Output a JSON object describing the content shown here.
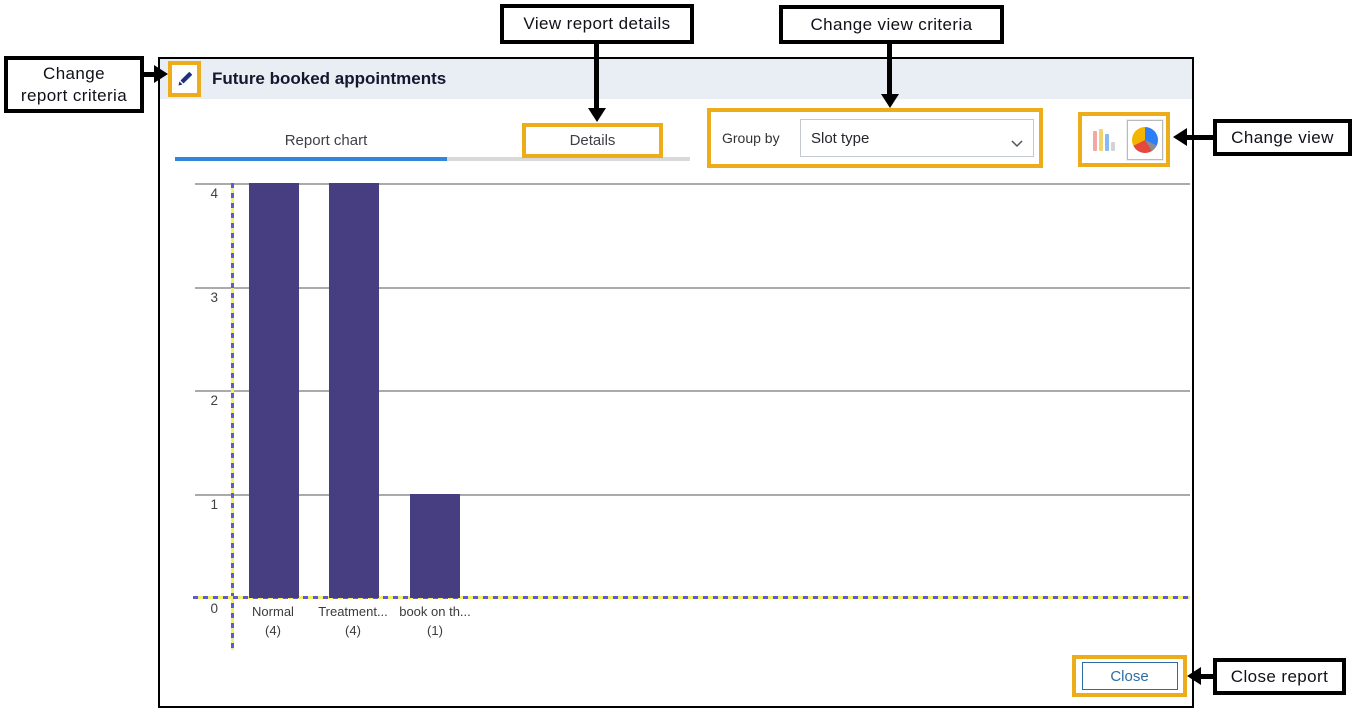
{
  "annotations": {
    "change_report_criteria": {
      "line1": "Change",
      "line2": "report criteria"
    },
    "view_report_details": "View report details",
    "change_view_criteria": "Change view criteria",
    "change_view": "Change view",
    "close_report": "Close report"
  },
  "dialog": {
    "title": "Future booked appointments",
    "tabs": {
      "report_chart": "Report chart",
      "details": "Details"
    },
    "group_by": {
      "label": "Group by",
      "selected": "Slot type"
    },
    "close_label": "Close"
  },
  "chart_data": {
    "type": "bar",
    "title": "Future booked appointments",
    "categories": [
      "Normal",
      "Treatment...",
      "book on th..."
    ],
    "counts": [
      "(4)",
      "(4)",
      "(1)"
    ],
    "values": [
      4,
      4,
      1
    ],
    "y_ticks": [
      4,
      3,
      2,
      1,
      0
    ],
    "ylim": [
      0,
      4
    ],
    "grid": true,
    "legend": false,
    "bar_color": "#473e82"
  },
  "colors": {
    "highlight_gold": "#edac1a",
    "bar_purple": "#473e82",
    "tab_active_blue": "#2f86db",
    "close_blue": "#2e6da4",
    "header_bg": "#e9eef5",
    "axis_dash_blue": "#5b5bd8",
    "axis_dash_yellow": "#f4ef6e"
  }
}
